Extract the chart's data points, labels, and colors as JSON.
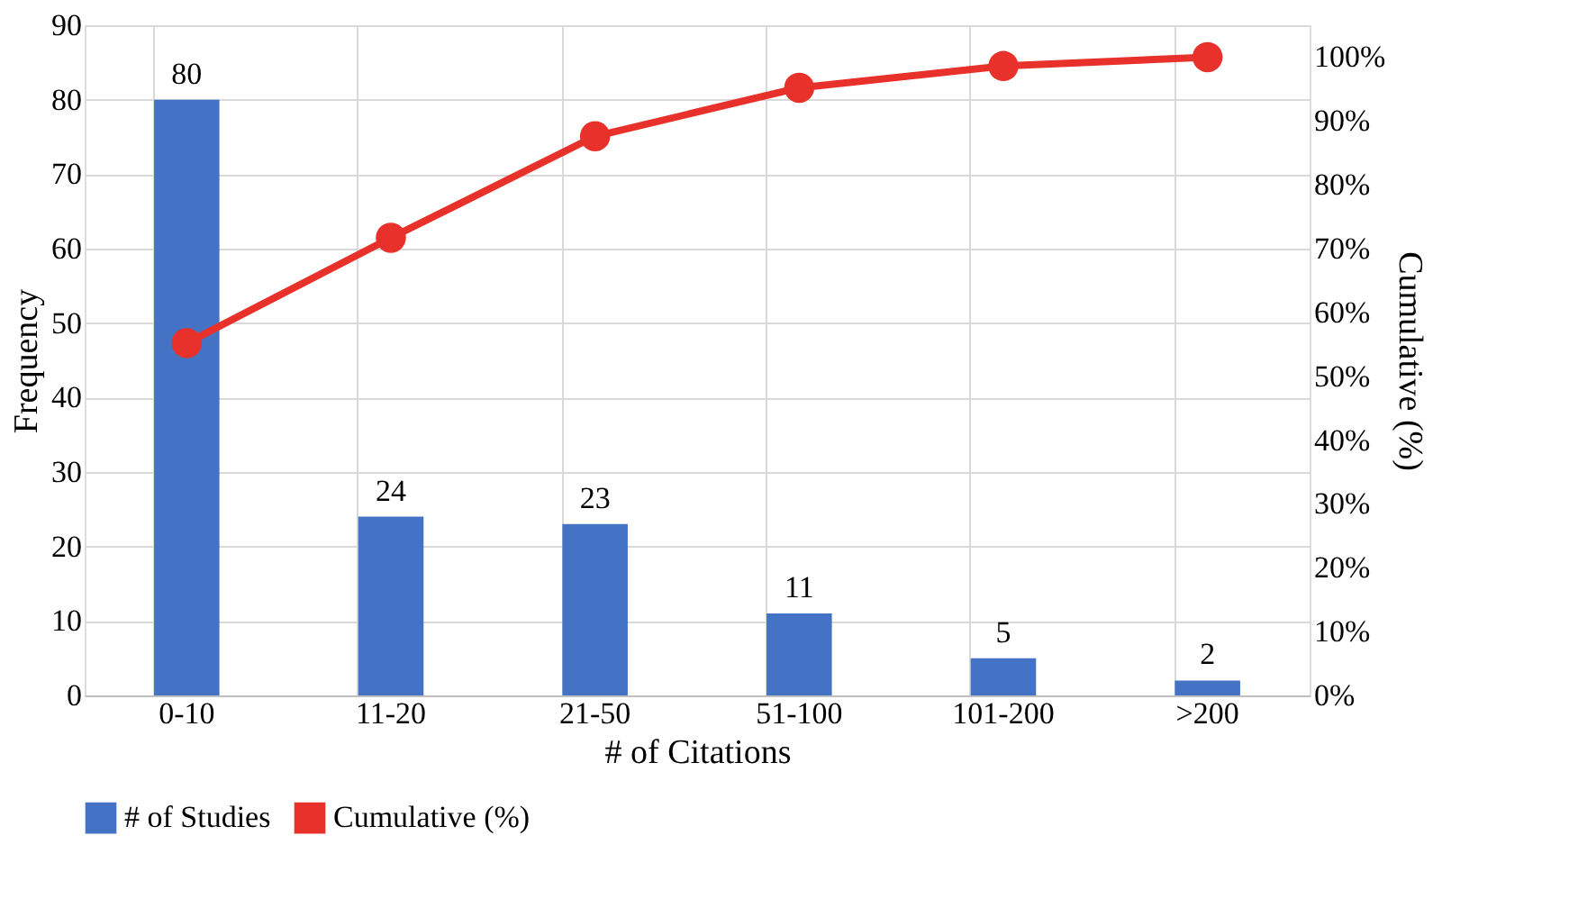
{
  "chart_data": {
    "type": "bar",
    "xlabel": "# of Citations",
    "ylabel": "Frequency",
    "y2label": "Cumulative (%)",
    "categories": [
      "0-10",
      "11-20",
      "21-50",
      "51-100",
      "101-200",
      ">200"
    ],
    "series": [
      {
        "name": "# of Studies",
        "color": "#4472c4",
        "values": [
          80,
          24,
          23,
          11,
          5,
          2
        ],
        "value_labels": [
          "80",
          "24",
          "23",
          "11",
          "5",
          "2"
        ]
      },
      {
        "name": "Cumulative (%)",
        "type": "line",
        "axis": "y2",
        "color": "#e8312a",
        "marker": "circle",
        "line_style": "solid",
        "values": [
          55.2,
          71.7,
          87.6,
          95.2,
          98.6,
          100
        ]
      }
    ],
    "ylim": [
      0,
      90
    ],
    "yticks": [
      0,
      10,
      20,
      30,
      40,
      50,
      60,
      70,
      80,
      90
    ],
    "y2lim": [
      0,
      105
    ],
    "y2ticks": [
      {
        "value": 0,
        "label": "0%"
      },
      {
        "value": 10,
        "label": "10%"
      },
      {
        "value": 20,
        "label": "20%"
      },
      {
        "value": 30,
        "label": "30%"
      },
      {
        "value": 40,
        "label": "40%"
      },
      {
        "value": 50,
        "label": "50%"
      },
      {
        "value": 60,
        "label": "60%"
      },
      {
        "value": 70,
        "label": "70%"
      },
      {
        "value": 80,
        "label": "80%"
      },
      {
        "value": 90,
        "label": "90%"
      },
      {
        "value": 100,
        "label": "100%"
      }
    ],
    "grid": true,
    "legend": "bottom"
  }
}
